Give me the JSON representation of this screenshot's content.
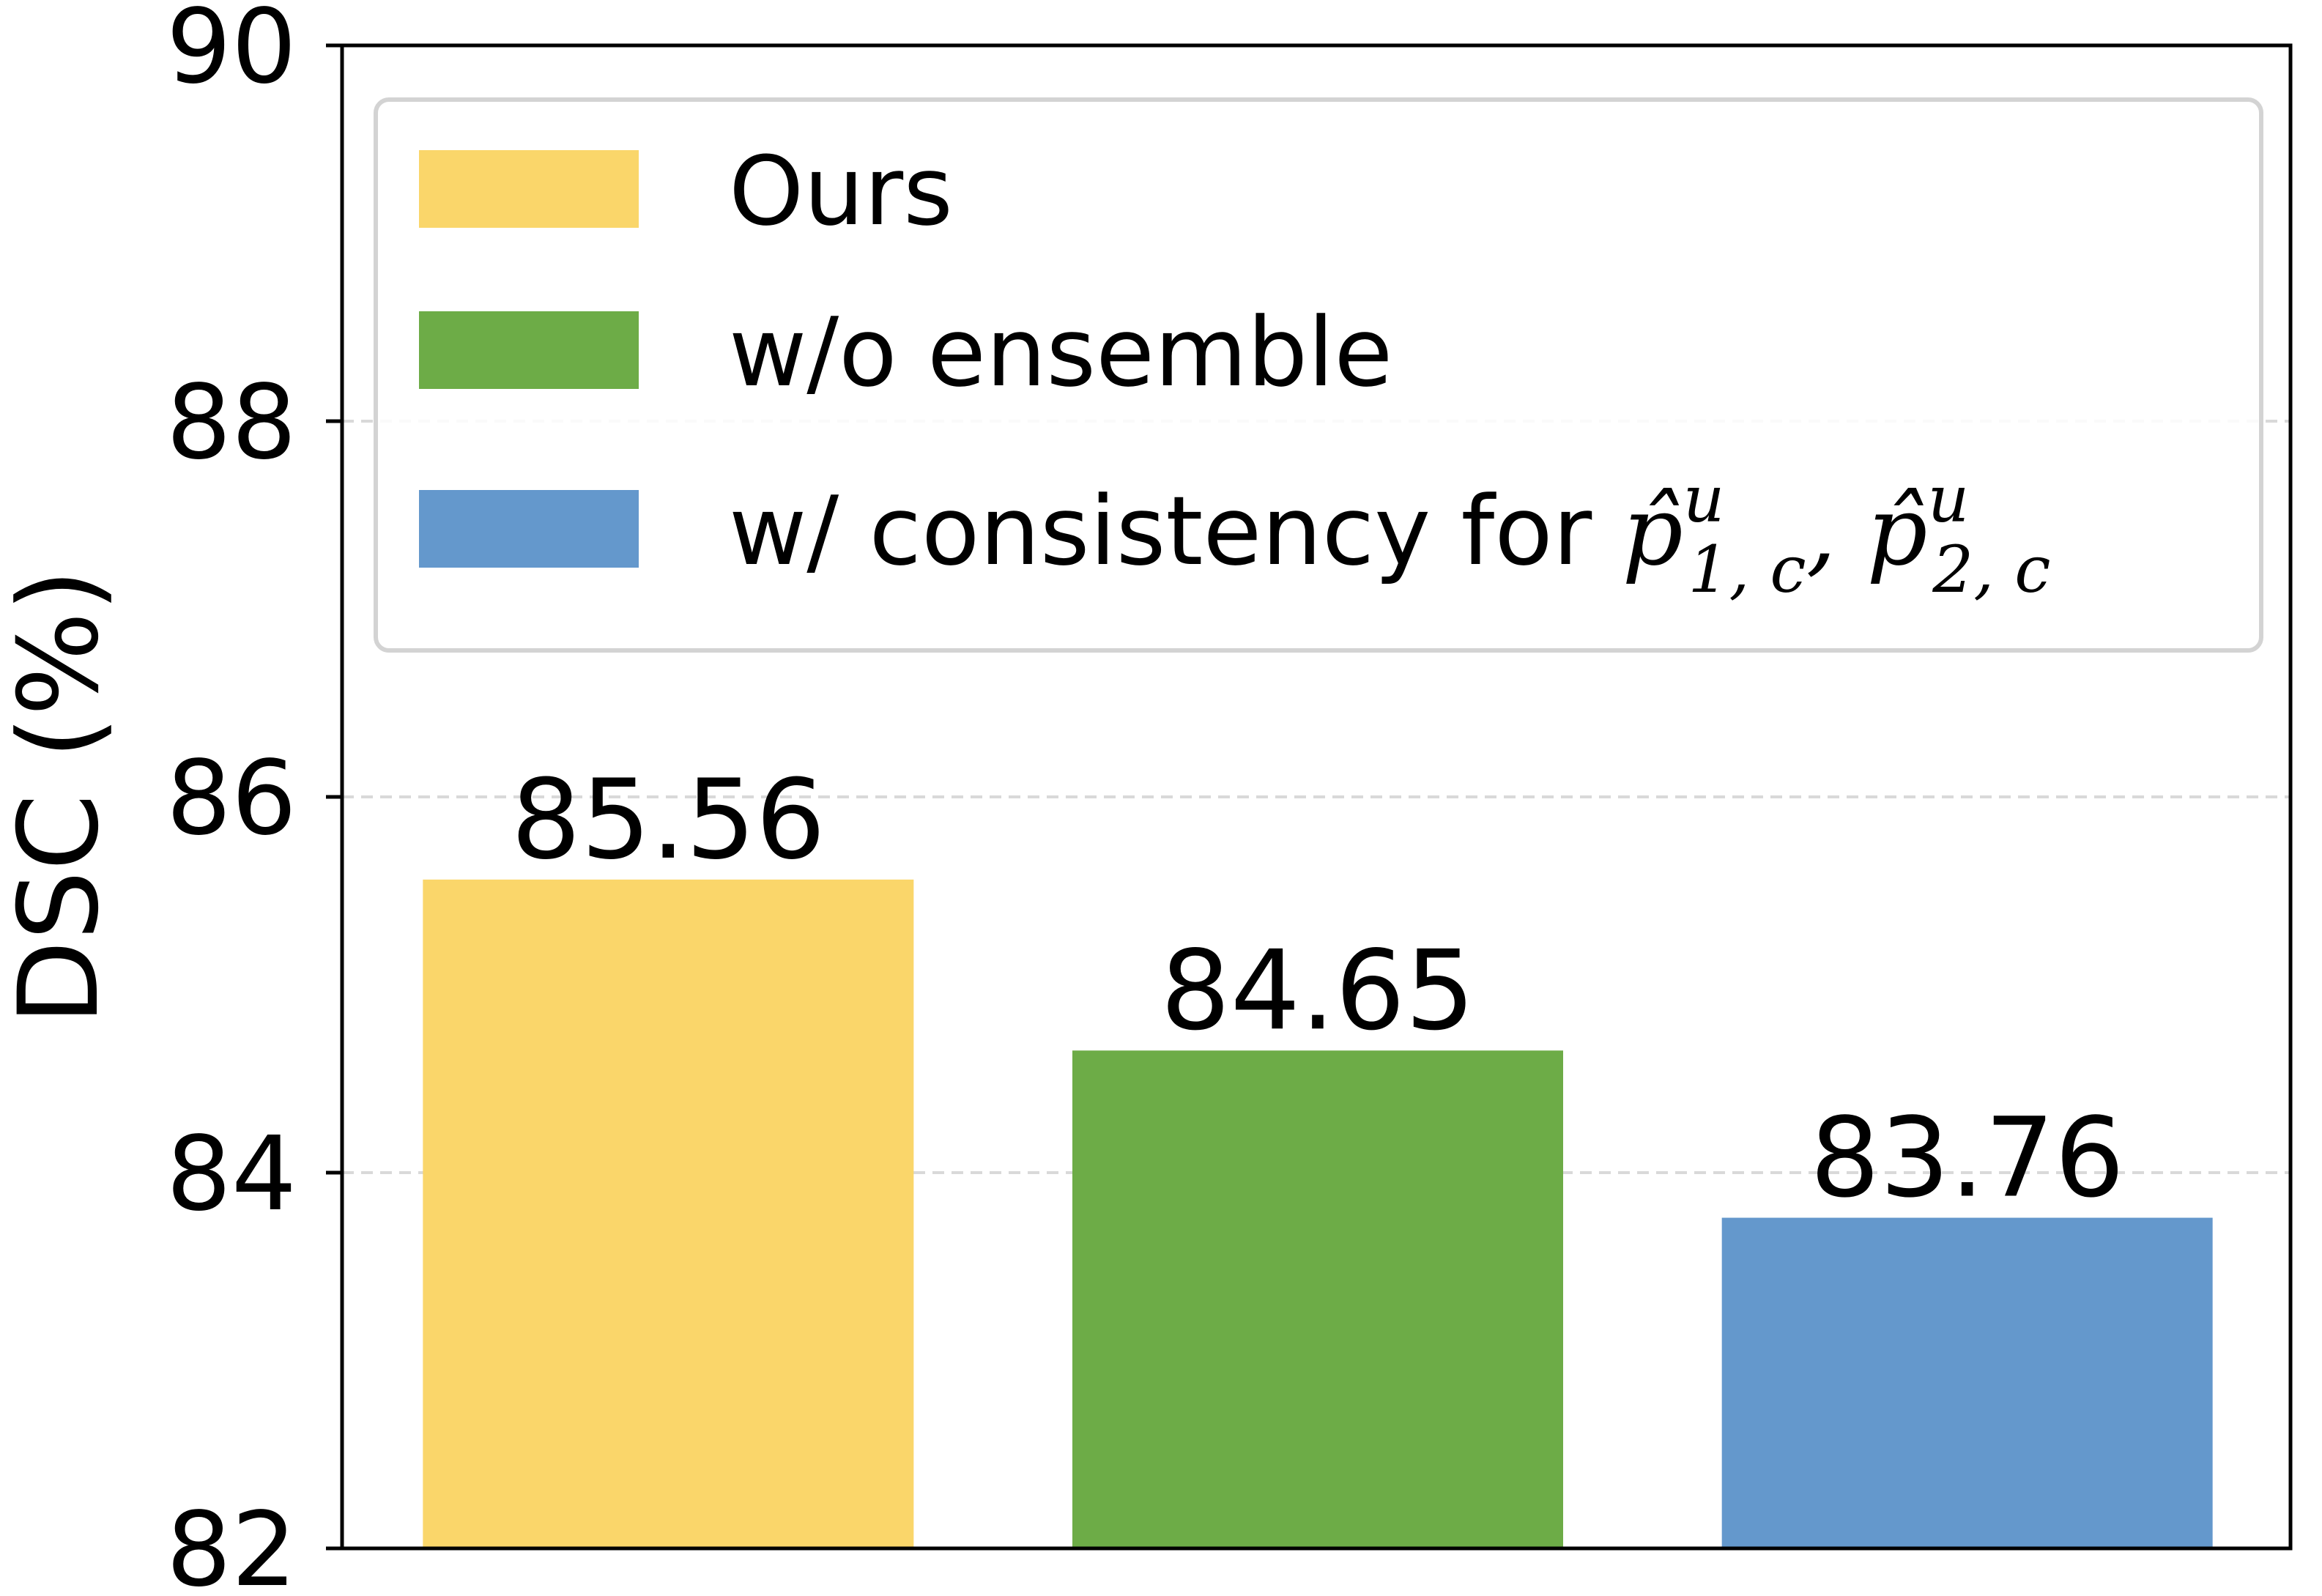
{
  "chart_data": {
    "type": "bar",
    "ylabel": "DSC (%)",
    "ylim": [
      82,
      90
    ],
    "yticks": [
      "82",
      "84",
      "86",
      "88",
      "90"
    ],
    "grid": "horizontal dashed",
    "legend_placement": "top",
    "series": [
      {
        "name": "Ours",
        "value": 85.56,
        "label": "85.56",
        "color": "#FAD66A"
      },
      {
        "name": "w/o ensemble",
        "value": 84.65,
        "label": "84.65",
        "color": "#6DAC47"
      },
      {
        "name": "w/ consistency for p̂ᵘ₁,c, p̂ᵘ₂,c",
        "value": 83.76,
        "label": "83.76",
        "color": "#6498CC"
      }
    ],
    "legend": {
      "items": [
        {
          "text": "Ours"
        },
        {
          "text": "w/o ensemble"
        },
        {
          "text": "w/ consistency for ",
          "math": [
            {
              "base": "p̂",
              "sup": "u",
              "sub": "1, c"
            },
            {
              "base": "p̂",
              "sup": "u",
              "sub": "2, c"
            }
          ]
        }
      ]
    }
  }
}
